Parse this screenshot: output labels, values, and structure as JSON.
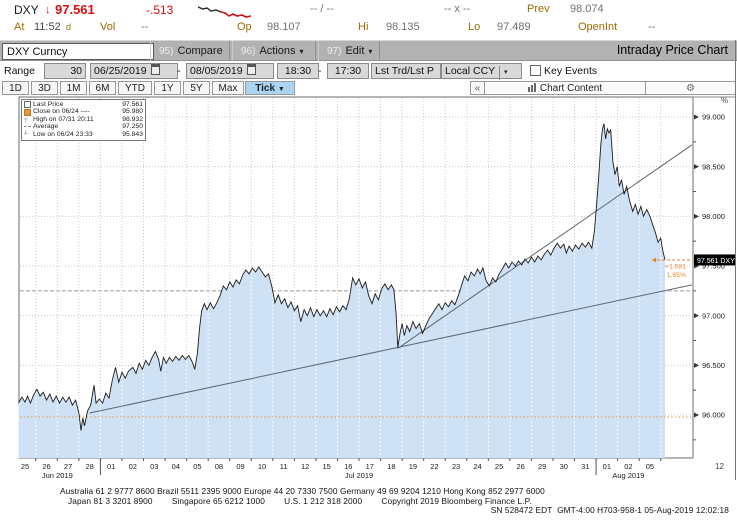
{
  "header": {
    "ticker": "DXY",
    "arrow": "↓",
    "last": "97.561",
    "change": "-.513",
    "bid_ask": "-- / --",
    "cross": "-- x --",
    "prev_label": "Prev",
    "prev": "98.074",
    "at_label": "At",
    "time": "11:52",
    "delay_flag": "d",
    "vol_label": "Vol",
    "vol": "--",
    "open_label": "Op",
    "open": "98.107",
    "high_label": "Hi",
    "high": "98.135",
    "low_label": "Lo",
    "low": "97.489",
    "openint_label": "OpenInt",
    "openint": "--",
    "sparkline": {
      "black": [
        [
          0,
          3
        ],
        [
          5,
          5
        ],
        [
          9,
          4
        ],
        [
          13,
          7
        ],
        [
          18,
          6
        ],
        [
          23,
          8
        ]
      ],
      "red": [
        [
          23,
          8
        ],
        [
          27,
          9
        ],
        [
          31,
          12
        ],
        [
          35,
          10
        ],
        [
          39,
          12
        ],
        [
          44,
          11
        ],
        [
          48,
          13
        ],
        [
          53,
          12
        ]
      ]
    }
  },
  "toolbar": {
    "security": "DXY Curncy",
    "menus": [
      {
        "key": "95)",
        "label": "Compare",
        "arrow": ""
      },
      {
        "key": "96)",
        "label": "Actions",
        "arrow": "▾"
      },
      {
        "key": "97)",
        "label": "Edit",
        "arrow": "▾"
      }
    ],
    "title": "Intraday Price Chart"
  },
  "range_bar": {
    "label": "Range",
    "bars": "30",
    "start_date": "06/25/2019",
    "end_date": "08/05/2019",
    "dash1": "-",
    "dash2": "-",
    "start_time": "18:30",
    "end_time": "17:30",
    "price_btn": "Lst Trd/Lst P",
    "currency": "Local CCY",
    "currency_arrow": "▾",
    "key_events": "Key Events"
  },
  "tabs": {
    "periods": [
      "1D",
      "3D",
      "1M",
      "6M",
      "YTD",
      "1Y",
      "5Y",
      "Max"
    ],
    "active": "Tick",
    "active_arrow": "▼",
    "collapse": "«",
    "chart_content": "Chart Content",
    "gear": "⚙"
  },
  "legend": {
    "rows": [
      {
        "marker": "last",
        "label": "Last Price",
        "value": "97.561"
      },
      {
        "marker": "close",
        "label": "Close on 06/24 ----",
        "value": "95.980"
      },
      {
        "marker": "high",
        "label": "High on 07/31 20:11",
        "value": "98.932"
      },
      {
        "marker": "avg",
        "label": "Average",
        "value": "97.250"
      },
      {
        "marker": "low",
        "label": "Low on 06/24 23:33",
        "value": "95.843"
      }
    ]
  },
  "edge": {
    "percent": "%",
    "panel": "12"
  },
  "chart_data": {
    "type": "area",
    "title": "Intraday Price Chart",
    "security": "DXY Curncy",
    "x_labels": [
      "25",
      "26",
      "27",
      "28",
      "01",
      "02",
      "03",
      "04",
      "05",
      "08",
      "09",
      "10",
      "11",
      "12",
      "15",
      "16",
      "17",
      "18",
      "19",
      "22",
      "23",
      "24",
      "25",
      "26",
      "29",
      "30",
      "31",
      "01",
      "02",
      "05"
    ],
    "month_markers": [
      {
        "label": "Jun 2019",
        "day": 1.5
      },
      {
        "label": "Jul 2019",
        "day": 15.5
      },
      {
        "label": "Aug 2019",
        "day": 28
      }
    ],
    "month_separators": [
      3.5,
      26.5
    ],
    "y_ticks": [
      {
        "v": 99.0,
        "label": "99.000"
      },
      {
        "v": 98.5,
        "label": "98.500"
      },
      {
        "v": 98.0,
        "label": "98.000"
      },
      {
        "v": 97.5,
        "label": "97.500"
      },
      {
        "v": 97.0,
        "label": "97.000"
      },
      {
        "v": 96.5,
        "label": "96.500"
      },
      {
        "v": 96.0,
        "label": "96.000"
      }
    ],
    "y_minor_ticks": [
      95.75,
      96.25,
      96.75,
      97.25,
      97.75,
      98.25,
      98.75
    ],
    "ylim": [
      95.57,
      99.2
    ],
    "close_line": {
      "label": "Close on 06/24",
      "value": 95.98
    },
    "average_line": {
      "label": "Average",
      "value": 97.25
    },
    "high_marker": {
      "label": "High on 07/31 20:11",
      "value": 98.932
    },
    "low_marker": {
      "label": "Low on 06/24 23:33",
      "value": 95.843
    },
    "trendlines": [
      [
        [
          3.0,
          96.02
        ],
        [
          31.05,
          97.31
        ]
      ],
      [
        [
          17.3,
          96.67
        ],
        [
          31.05,
          98.72
        ]
      ]
    ],
    "annotation": {
      "change": "+1.581",
      "pct": "1.65%",
      "price": 97.561,
      "from_day": 29.1
    },
    "last_price_badge": "97.561 DXY",
    "colors": {
      "area": "#cfe1f5",
      "line": "#1c1c1c",
      "grid": "#c9c9c9",
      "trend": "#5d6673",
      "close": "#e09a40",
      "annotation": "#e8862a",
      "badge_bg": "#000000",
      "badge_text": "#ffffff"
    },
    "series": {
      "name": "Last Price",
      "points": [
        [
          -0.3,
          96.12
        ],
        [
          -0.15,
          96.18
        ],
        [
          0,
          96.13
        ],
        [
          0.12,
          96.19
        ],
        [
          0.25,
          96.12
        ],
        [
          0.4,
          96.2
        ],
        [
          0.55,
          96.26
        ],
        [
          0.7,
          96.19
        ],
        [
          0.85,
          96.23
        ],
        [
          1,
          96.15
        ],
        [
          1.15,
          96.21
        ],
        [
          1.3,
          96.13
        ],
        [
          1.45,
          96.19
        ],
        [
          1.6,
          96.12
        ],
        [
          1.75,
          96.18
        ],
        [
          1.9,
          96.13
        ],
        [
          2.05,
          96.18
        ],
        [
          2.2,
          96.1
        ],
        [
          2.35,
          96.15
        ],
        [
          2.5,
          96.02
        ],
        [
          2.6,
          95.843
        ],
        [
          2.68,
          95.97
        ],
        [
          2.76,
          95.89
        ],
        [
          2.9,
          96.04
        ],
        [
          3.05,
          96.1
        ],
        [
          3.2,
          96.3
        ],
        [
          3.3,
          96.12
        ],
        [
          3.45,
          96.16
        ],
        [
          3.6,
          96.12
        ],
        [
          3.75,
          96.22
        ],
        [
          3.9,
          96.17
        ],
        [
          4.05,
          96.35
        ],
        [
          4.2,
          96.48
        ],
        [
          4.35,
          96.33
        ],
        [
          4.5,
          96.43
        ],
        [
          4.65,
          96.37
        ],
        [
          4.8,
          96.44
        ],
        [
          5,
          96.48
        ],
        [
          5.15,
          96.42
        ],
        [
          5.3,
          96.52
        ],
        [
          5.45,
          96.46
        ],
        [
          5.6,
          96.55
        ],
        [
          5.75,
          96.5
        ],
        [
          5.9,
          96.58
        ],
        [
          6.05,
          96.64
        ],
        [
          6.2,
          96.56
        ],
        [
          6.3,
          96.44
        ],
        [
          6.42,
          96.58
        ],
        [
          6.55,
          96.52
        ],
        [
          6.7,
          96.58
        ],
        [
          6.85,
          96.54
        ],
        [
          7,
          96.59
        ],
        [
          7.15,
          96.55
        ],
        [
          7.3,
          96.6
        ],
        [
          7.45,
          96.56
        ],
        [
          7.6,
          96.6
        ],
        [
          7.75,
          96.54
        ],
        [
          7.88,
          96.46
        ],
        [
          8,
          96.62
        ],
        [
          8.1,
          96.88
        ],
        [
          8.2,
          97.05
        ],
        [
          8.32,
          97.12
        ],
        [
          8.45,
          97.06
        ],
        [
          8.6,
          97.13
        ],
        [
          8.75,
          97.07
        ],
        [
          8.9,
          97.13
        ],
        [
          9.05,
          97.2
        ],
        [
          9.2,
          97.3
        ],
        [
          9.35,
          97.26
        ],
        [
          9.5,
          97.34
        ],
        [
          9.65,
          97.29
        ],
        [
          9.8,
          97.36
        ],
        [
          9.95,
          97.32
        ],
        [
          10.1,
          97.41
        ],
        [
          10.25,
          97.46
        ],
        [
          10.4,
          97.42
        ],
        [
          10.55,
          97.48
        ],
        [
          10.7,
          97.44
        ],
        [
          10.85,
          97.49
        ],
        [
          11,
          97.44
        ],
        [
          11.15,
          97.39
        ],
        [
          11.3,
          97.42
        ],
        [
          11.45,
          97.3
        ],
        [
          11.6,
          97.13
        ],
        [
          11.75,
          97.21
        ],
        [
          11.9,
          97.12
        ],
        [
          12.05,
          97.17
        ],
        [
          12.2,
          97.08
        ],
        [
          12.35,
          97.14
        ],
        [
          12.5,
          97.05
        ],
        [
          12.65,
          97.1
        ],
        [
          12.8,
          96.94
        ],
        [
          12.95,
          97.06
        ],
        [
          13.1,
          97.0
        ],
        [
          13.25,
          97.08
        ],
        [
          13.4,
          96.99
        ],
        [
          13.55,
          97.06
        ],
        [
          13.7,
          97.0
        ],
        [
          13.85,
          97.05
        ],
        [
          14,
          96.99
        ],
        [
          14.15,
          97.07
        ],
        [
          14.3,
          97.01
        ],
        [
          14.45,
          97.09
        ],
        [
          14.6,
          97.04
        ],
        [
          14.75,
          97.1
        ],
        [
          14.9,
          97.06
        ],
        [
          15.05,
          97.17
        ],
        [
          15.2,
          97.38
        ],
        [
          15.35,
          97.31
        ],
        [
          15.5,
          97.37
        ],
        [
          15.65,
          97.28
        ],
        [
          15.8,
          97.34
        ],
        [
          15.95,
          97.2
        ],
        [
          16.1,
          97.12
        ],
        [
          16.25,
          97.22
        ],
        [
          16.4,
          97.16
        ],
        [
          16.55,
          97.27
        ],
        [
          16.7,
          97.32
        ],
        [
          16.85,
          97.26
        ],
        [
          17,
          97.31
        ],
        [
          17.12,
          97.26
        ],
        [
          17.22,
          97.02
        ],
        [
          17.3,
          96.68
        ],
        [
          17.4,
          96.82
        ],
        [
          17.5,
          96.92
        ],
        [
          17.6,
          96.8
        ],
        [
          17.72,
          96.9
        ],
        [
          17.85,
          96.84
        ],
        [
          18,
          96.94
        ],
        [
          18.15,
          96.87
        ],
        [
          18.3,
          96.92
        ],
        [
          18.45,
          96.82
        ],
        [
          18.6,
          96.9
        ],
        [
          18.75,
          96.97
        ],
        [
          18.9,
          97.02
        ],
        [
          19.05,
          97.07
        ],
        [
          19.2,
          97.12
        ],
        [
          19.35,
          97.06
        ],
        [
          19.5,
          97.13
        ],
        [
          19.65,
          97.09
        ],
        [
          19.8,
          97.15
        ],
        [
          19.95,
          97.11
        ],
        [
          20.1,
          97.2
        ],
        [
          20.25,
          97.3
        ],
        [
          20.4,
          97.4
        ],
        [
          20.55,
          97.35
        ],
        [
          20.7,
          97.44
        ],
        [
          20.85,
          97.4
        ],
        [
          21,
          97.47
        ],
        [
          21.12,
          97.42
        ],
        [
          21.25,
          97.48
        ],
        [
          21.4,
          97.35
        ],
        [
          21.55,
          97.3
        ],
        [
          21.7,
          97.38
        ],
        [
          21.85,
          97.34
        ],
        [
          22,
          97.42
        ],
        [
          22.15,
          97.47
        ],
        [
          22.3,
          97.53
        ],
        [
          22.45,
          97.48
        ],
        [
          22.6,
          97.54
        ],
        [
          22.75,
          97.5
        ],
        [
          22.9,
          97.55
        ],
        [
          23.05,
          97.51
        ],
        [
          23.2,
          97.57
        ],
        [
          23.35,
          97.53
        ],
        [
          23.5,
          97.59
        ],
        [
          23.65,
          97.54
        ],
        [
          23.8,
          97.6
        ],
        [
          23.95,
          97.56
        ],
        [
          24.1,
          97.62
        ],
        [
          24.25,
          97.66
        ],
        [
          24.4,
          97.61
        ],
        [
          24.55,
          97.68
        ],
        [
          24.7,
          97.73
        ],
        [
          24.85,
          97.68
        ],
        [
          25,
          97.72
        ],
        [
          25.12,
          97.63
        ],
        [
          25.25,
          97.7
        ],
        [
          25.4,
          97.65
        ],
        [
          25.55,
          97.71
        ],
        [
          25.7,
          97.67
        ],
        [
          25.85,
          97.73
        ],
        [
          26,
          97.69
        ],
        [
          26.15,
          97.74
        ],
        [
          26.3,
          97.68
        ],
        [
          26.42,
          97.85
        ],
        [
          26.52,
          98.1
        ],
        [
          26.62,
          98.4
        ],
        [
          26.72,
          98.72
        ],
        [
          26.8,
          98.88
        ],
        [
          26.87,
          98.932
        ],
        [
          26.94,
          98.78
        ],
        [
          27.02,
          98.88
        ],
        [
          27.1,
          98.84
        ],
        [
          27.18,
          98.87
        ],
        [
          27.28,
          98.55
        ],
        [
          27.38,
          98.42
        ],
        [
          27.48,
          98.5
        ],
        [
          27.58,
          98.3
        ],
        [
          27.68,
          98.37
        ],
        [
          27.8,
          98.22
        ],
        [
          27.92,
          98.3
        ],
        [
          28.05,
          98.16
        ],
        [
          28.2,
          98.05
        ],
        [
          28.32,
          98.12
        ],
        [
          28.45,
          98.02
        ],
        [
          28.58,
          98.1
        ],
        [
          28.7,
          98.0
        ],
        [
          28.85,
          98.07
        ],
        [
          29,
          98.0
        ],
        [
          29.12,
          97.92
        ],
        [
          29.25,
          97.84
        ],
        [
          29.38,
          97.74
        ],
        [
          29.5,
          97.78
        ],
        [
          29.6,
          97.65
        ],
        [
          29.7,
          97.561
        ]
      ]
    }
  },
  "footer": {
    "line1": "Australia 61 2 9777 8600 Brazil 5511 2395 9000 Europe 44 20 7330 7500 Germany 49 69 9204 1210 Hong Kong 852 2977 6000",
    "line2": "Japan 81 3 3201 8900        Singapore 65 6212 1000        U.S. 1 212 318 2000        Copyright 2019 Bloomberg Finance L.P.",
    "line3": "SN 528472 EDT  GMT-4:00 H703-958-1 05-Aug-2019 12:02:18"
  }
}
